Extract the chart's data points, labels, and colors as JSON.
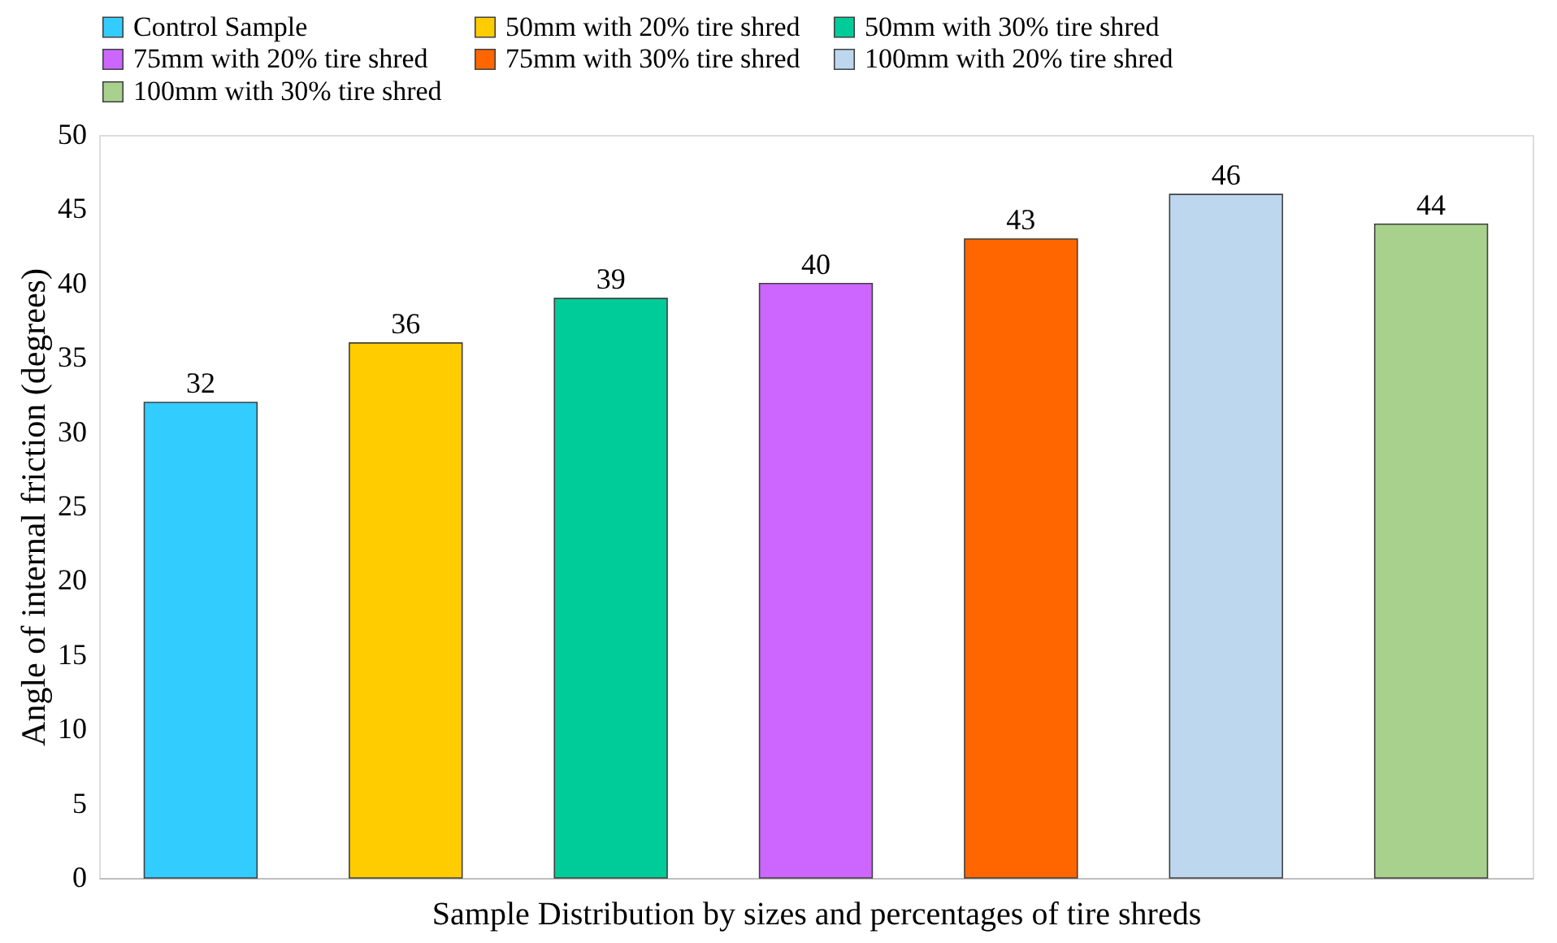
{
  "chart_data": {
    "type": "bar",
    "xlabel": "Sample Distribution by sizes and percentages of tire shreds",
    "ylabel": "Angle of internal friction (degrees)",
    "categories": [
      null,
      null,
      null,
      null,
      null,
      null,
      null
    ],
    "series": [
      {
        "name": "Control Sample",
        "color": "#33ccff",
        "values": [
          32,
          null,
          null,
          null,
          null,
          null,
          null
        ]
      },
      {
        "name": "50mm with 20% tire shred",
        "color": "#ffcc00",
        "values": [
          null,
          36,
          null,
          null,
          null,
          null,
          null
        ]
      },
      {
        "name": "50mm with 30% tire shred",
        "color": "#00cc99",
        "values": [
          null,
          null,
          39,
          null,
          null,
          null,
          null
        ]
      },
      {
        "name": "75mm with 20% tire shred",
        "color": "#cc66ff",
        "values": [
          null,
          null,
          null,
          40,
          null,
          null,
          null
        ]
      },
      {
        "name": "75mm with 30% tire shred",
        "color": "#ff6600",
        "values": [
          null,
          null,
          null,
          null,
          43,
          null,
          null
        ]
      },
      {
        "name": "100mm with 20% tire shred",
        "color": "#bdd7ee",
        "values": [
          null,
          null,
          null,
          null,
          null,
          46,
          null
        ]
      },
      {
        "name": "100mm with 30% tire shred",
        "color": "#a9d18e",
        "values": [
          null,
          null,
          null,
          null,
          null,
          null,
          44
        ]
      }
    ],
    "ylim": [
      0,
      50
    ],
    "yticks": [
      0,
      5,
      10,
      15,
      20,
      25,
      30,
      35,
      40,
      45,
      50
    ],
    "grid": false,
    "legend": "top",
    "data_labels": true,
    "tick_labels": "y"
  }
}
